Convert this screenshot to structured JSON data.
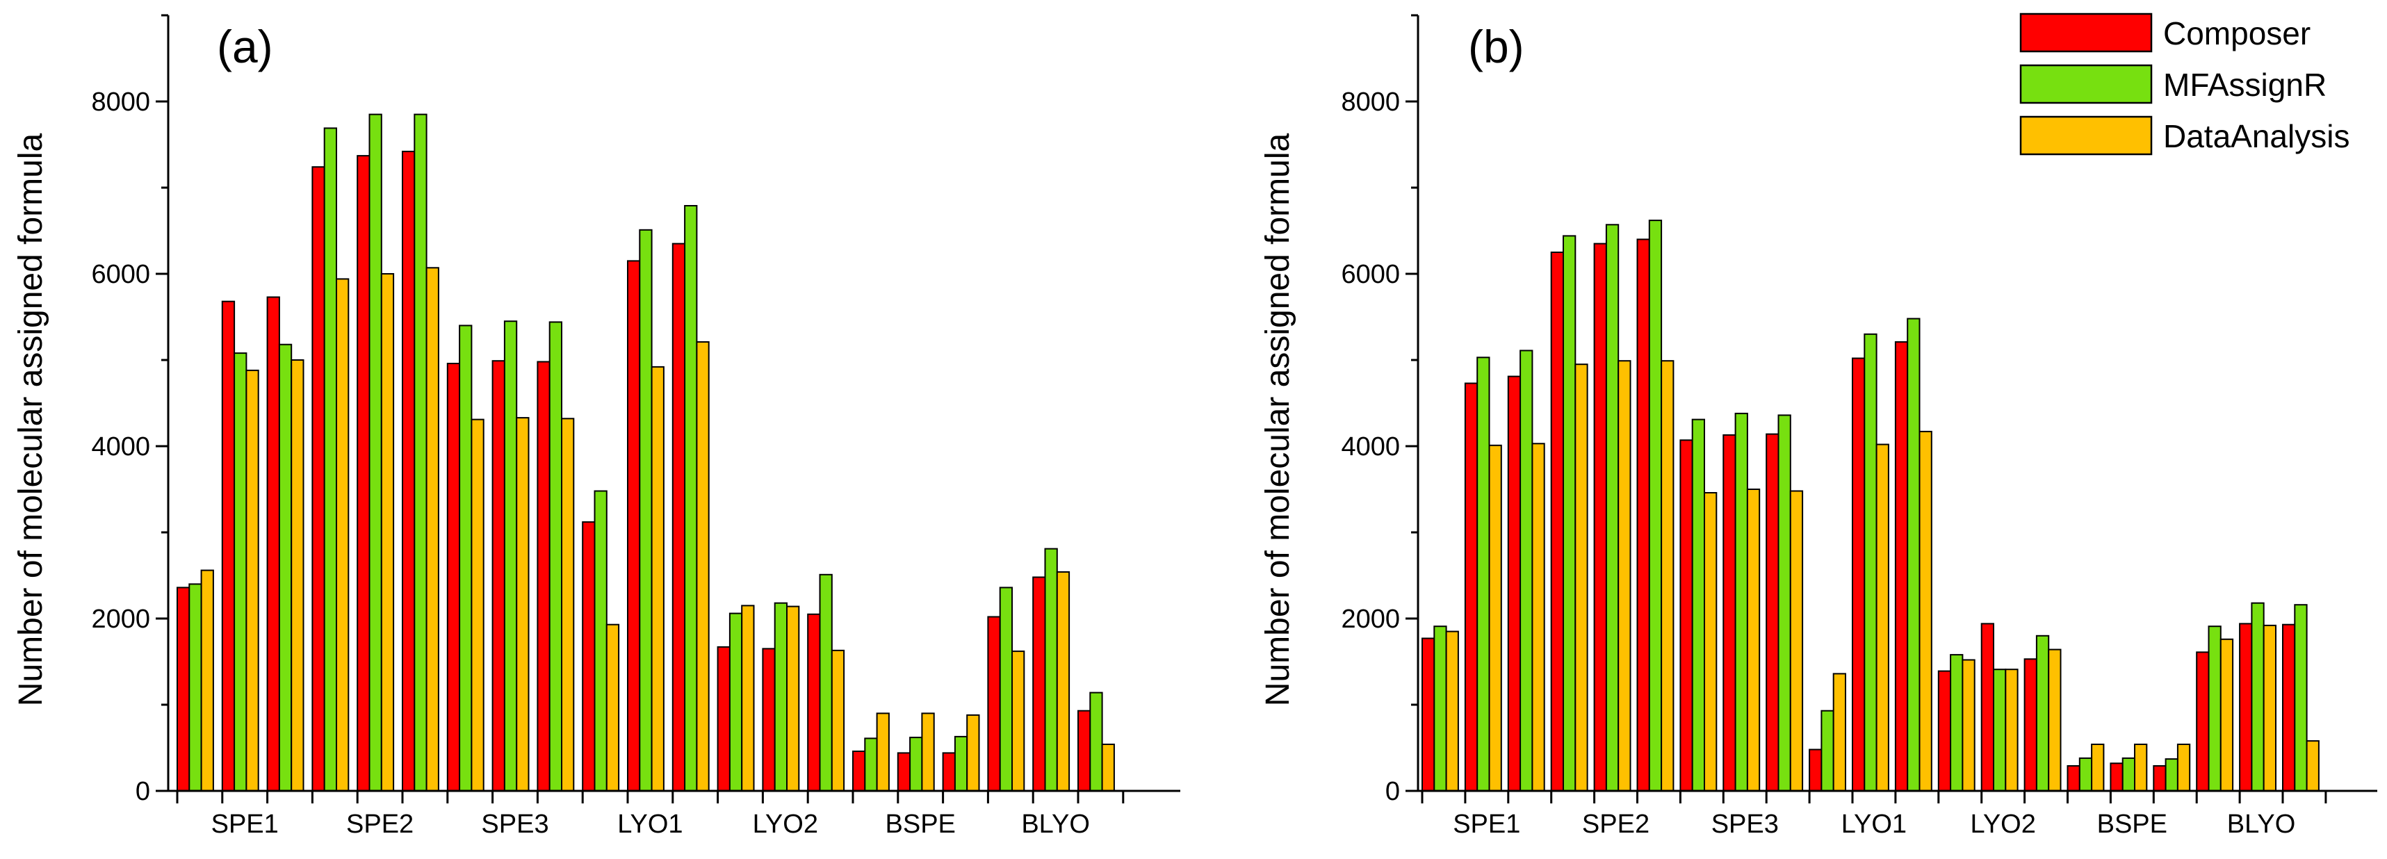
{
  "colors": {
    "Composer": "#ff0000",
    "MFAssignR": "#77e010",
    "DataAnalysis": "#ffc000"
  },
  "legend": {
    "items": [
      "Composer",
      "MFAssignR",
      "DataAnalysis"
    ]
  },
  "chart_data": [
    {
      "type": "bar",
      "panel_label": "(a)",
      "title": "",
      "xlabel": "",
      "ylabel": "Number of molecular assigned formula",
      "ylim": [
        0,
        9000
      ],
      "yticks": [
        0,
        2000,
        4000,
        6000,
        8000
      ],
      "groups": [
        "SPE1",
        "SPE2",
        "SPE3",
        "LYO1",
        "LYO2",
        "BSPE",
        "BLYO"
      ],
      "replicates_per_group": 3,
      "series": [
        {
          "name": "Composer",
          "values": [
            2360,
            5680,
            5730,
            7240,
            7370,
            7420,
            4960,
            4990,
            4980,
            3120,
            6150,
            6350,
            1670,
            1650,
            2050,
            460,
            440,
            440,
            2020,
            2480,
            930
          ]
        },
        {
          "name": "MFAssignR",
          "values": [
            2400,
            5080,
            5180,
            7690,
            7850,
            7850,
            5400,
            5450,
            5440,
            3480,
            6510,
            6790,
            2060,
            2180,
            2510,
            610,
            620,
            630,
            2360,
            2810,
            1140
          ]
        },
        {
          "name": "DataAnalysis",
          "values": [
            2560,
            4880,
            5000,
            5940,
            6000,
            6070,
            4310,
            4330,
            4320,
            1930,
            4920,
            5210,
            2150,
            2140,
            1630,
            900,
            900,
            880,
            1620,
            2540,
            540
          ]
        }
      ]
    },
    {
      "type": "bar",
      "panel_label": "(b)",
      "title": "",
      "xlabel": "",
      "ylabel": "Number of molecular assigned formula",
      "ylim": [
        0,
        9000
      ],
      "yticks": [
        0,
        2000,
        4000,
        6000,
        8000
      ],
      "groups": [
        "SPE1",
        "SPE2",
        "SPE3",
        "LYO1",
        "LYO2",
        "BSPE",
        "BLYO"
      ],
      "replicates_per_group": 3,
      "series": [
        {
          "name": "Composer",
          "values": [
            1770,
            4730,
            4810,
            6250,
            6350,
            6400,
            4070,
            4130,
            4140,
            480,
            5020,
            5210,
            1390,
            1940,
            1530,
            290,
            320,
            290,
            1610,
            1940,
            1930
          ]
        },
        {
          "name": "MFAssignR",
          "values": [
            1910,
            5030,
            5110,
            6440,
            6570,
            6620,
            4310,
            4380,
            4360,
            930,
            5300,
            5480,
            1580,
            1410,
            1800,
            380,
            380,
            370,
            1910,
            2180,
            2160
          ]
        },
        {
          "name": "DataAnalysis",
          "values": [
            1850,
            4010,
            4030,
            4950,
            4990,
            4990,
            3460,
            3500,
            3480,
            1360,
            4020,
            4170,
            1520,
            1410,
            1640,
            540,
            540,
            540,
            1760,
            1920,
            580
          ]
        }
      ]
    }
  ]
}
